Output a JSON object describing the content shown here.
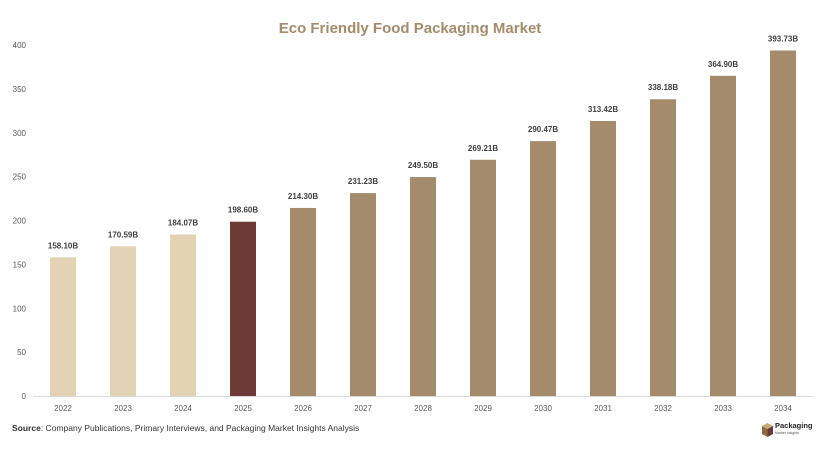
{
  "chart_data": {
    "type": "bar",
    "title": "Eco Friendly Food Packaging Market",
    "xlabel": "",
    "ylabel": "",
    "categories": [
      "2022",
      "2023",
      "2024",
      "2025",
      "2026",
      "2027",
      "2028",
      "2029",
      "2030",
      "2031",
      "2032",
      "2033",
      "2034"
    ],
    "values": [
      158.1,
      170.59,
      184.07,
      198.6,
      214.3,
      231.23,
      249.5,
      269.21,
      290.47,
      313.42,
      338.18,
      364.9,
      393.73
    ],
    "data_labels": [
      "158.10B",
      "170.59B",
      "184.07B",
      "198.60B",
      "214.30B",
      "231.23B",
      "249.50B",
      "269.21B",
      "290.47B",
      "313.42B",
      "338.18B",
      "364.90B",
      "393.73B"
    ],
    "ylim": [
      0,
      400
    ],
    "yticks": [
      "0",
      "50",
      "100",
      "150",
      "200",
      "250",
      "300",
      "350",
      "400"
    ],
    "ytick_values": [
      0,
      50,
      100,
      150,
      200,
      250,
      300,
      350,
      400
    ],
    "grid": false,
    "legend": "none",
    "bar_colors": [
      "#e3d3b4",
      "#e3d3b4",
      "#e3d3b4",
      "#6e3a38",
      "#a38b6c",
      "#a38b6c",
      "#a38b6c",
      "#a38b6c",
      "#a38b6c",
      "#a38b6c",
      "#a38b6c",
      "#a38b6c",
      "#a38b6c"
    ]
  },
  "colors": {
    "title": "#a38b6c",
    "axis": "#d9d9d9",
    "tick_text": "#595959",
    "label_text": "#404040"
  },
  "source": {
    "prefix": "Source",
    "text": ": Company Publications, Primary Interviews, and Packaging Market Insights Analysis"
  },
  "logo": {
    "name": "Packaging",
    "subtitle": "Market Insights"
  }
}
